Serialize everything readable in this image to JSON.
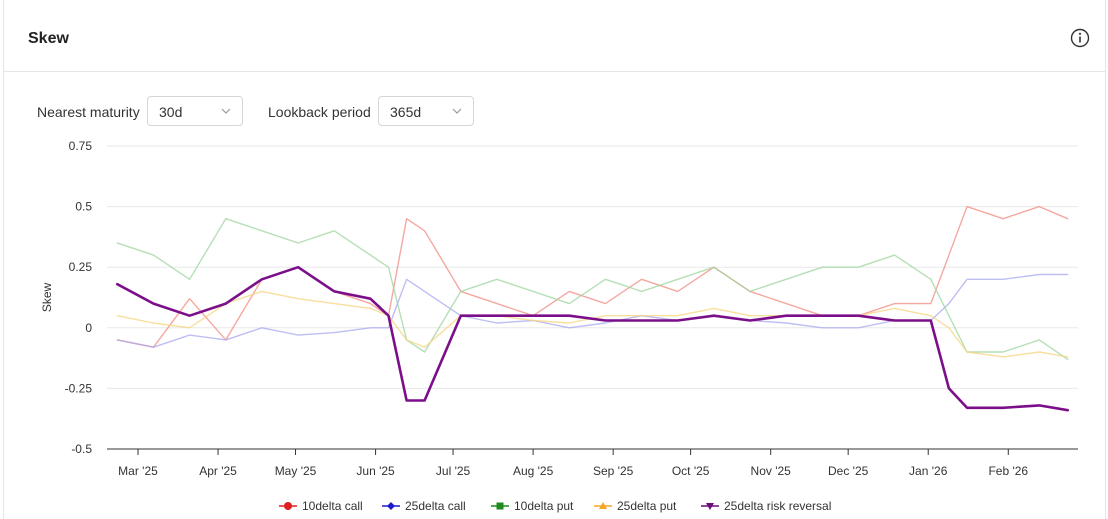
{
  "header": {
    "title": "Skew"
  },
  "controls": {
    "maturity_label": "Nearest maturity",
    "maturity_value": "30d",
    "lookback_label": "Lookback period",
    "lookback_value": "365d"
  },
  "icons": {
    "info": "info-icon",
    "chevron": "chevron-down-icon"
  },
  "chart_data": {
    "type": "line",
    "ylabel": "Skew",
    "xlabel": "",
    "ylim": [
      -0.5,
      0.75
    ],
    "yticks": [
      0.75,
      0.5,
      0.25,
      0,
      -0.25,
      -0.5
    ],
    "ytick_labels": [
      "0.75",
      "0.5",
      "0.25",
      "0",
      "-0.25",
      "-0.5"
    ],
    "xticks": [
      "Mar '25",
      "Apr '25",
      "May '25",
      "Jun '25",
      "Jul '25",
      "Aug '25",
      "Sep '25",
      "Oct '25",
      "Nov '25",
      "Dec '25",
      "Jan '26",
      "Feb '26"
    ],
    "grid": true,
    "legend_position": "bottom",
    "x": [
      "2025-02-21",
      "2025-03-07",
      "2025-03-21",
      "2025-04-04",
      "2025-04-18",
      "2025-05-02",
      "2025-05-16",
      "2025-05-30",
      "2025-06-06",
      "2025-06-13",
      "2025-06-20",
      "2025-07-04",
      "2025-07-18",
      "2025-08-01",
      "2025-08-15",
      "2025-08-29",
      "2025-09-12",
      "2025-09-26",
      "2025-10-10",
      "2025-10-24",
      "2025-11-07",
      "2025-11-21",
      "2025-12-05",
      "2025-12-19",
      "2026-01-02",
      "2026-01-09",
      "2026-01-16",
      "2026-01-30",
      "2026-02-13",
      "2026-02-24"
    ],
    "series": [
      {
        "name": "10delta call",
        "color": "#f28b82",
        "emphasis": false,
        "marker": "circle",
        "values": [
          -0.05,
          -0.08,
          0.12,
          -0.05,
          0.2,
          0.25,
          0.15,
          0.1,
          0.05,
          0.45,
          0.4,
          0.15,
          0.1,
          0.05,
          0.15,
          0.1,
          0.2,
          0.15,
          0.25,
          0.15,
          0.1,
          0.05,
          0.05,
          0.1,
          0.1,
          0.3,
          0.5,
          0.45,
          0.5,
          0.45
        ]
      },
      {
        "name": "25delta call",
        "color": "#a8a8f0",
        "emphasis": false,
        "marker": "diamond",
        "values": [
          -0.05,
          -0.08,
          -0.03,
          -0.05,
          0.0,
          -0.03,
          -0.02,
          0.0,
          0.0,
          0.2,
          0.15,
          0.05,
          0.02,
          0.03,
          0.0,
          0.02,
          0.05,
          0.03,
          0.05,
          0.03,
          0.02,
          0.0,
          0.0,
          0.03,
          0.03,
          0.1,
          0.2,
          0.2,
          0.22,
          0.22
        ]
      },
      {
        "name": "10delta put",
        "color": "#9ed49e",
        "emphasis": false,
        "marker": "square",
        "values": [
          0.35,
          0.3,
          0.2,
          0.45,
          0.4,
          0.35,
          0.4,
          0.3,
          0.25,
          -0.05,
          -0.1,
          0.15,
          0.2,
          0.15,
          0.1,
          0.2,
          0.15,
          0.2,
          0.25,
          0.15,
          0.2,
          0.25,
          0.25,
          0.3,
          0.2,
          0.05,
          -0.1,
          -0.1,
          -0.05,
          -0.13
        ]
      },
      {
        "name": "25delta put",
        "color": "#f5d47e",
        "emphasis": false,
        "marker": "triangle",
        "values": [
          0.05,
          0.02,
          0.0,
          0.1,
          0.15,
          0.12,
          0.1,
          0.08,
          0.05,
          -0.05,
          -0.08,
          0.05,
          0.05,
          0.03,
          0.02,
          0.05,
          0.05,
          0.05,
          0.08,
          0.05,
          0.05,
          0.05,
          0.05,
          0.08,
          0.05,
          0.0,
          -0.1,
          -0.12,
          -0.1,
          -0.12
        ]
      },
      {
        "name": "25delta risk reversal",
        "color": "#7b0f8a",
        "emphasis": true,
        "marker": "triangle-down",
        "values": [
          0.18,
          0.1,
          0.05,
          0.1,
          0.2,
          0.25,
          0.15,
          0.12,
          0.05,
          -0.3,
          -0.3,
          0.05,
          0.05,
          0.05,
          0.05,
          0.03,
          0.03,
          0.03,
          0.05,
          0.03,
          0.05,
          0.05,
          0.05,
          0.03,
          0.03,
          -0.25,
          -0.33,
          -0.33,
          -0.32,
          -0.34
        ]
      }
    ]
  }
}
